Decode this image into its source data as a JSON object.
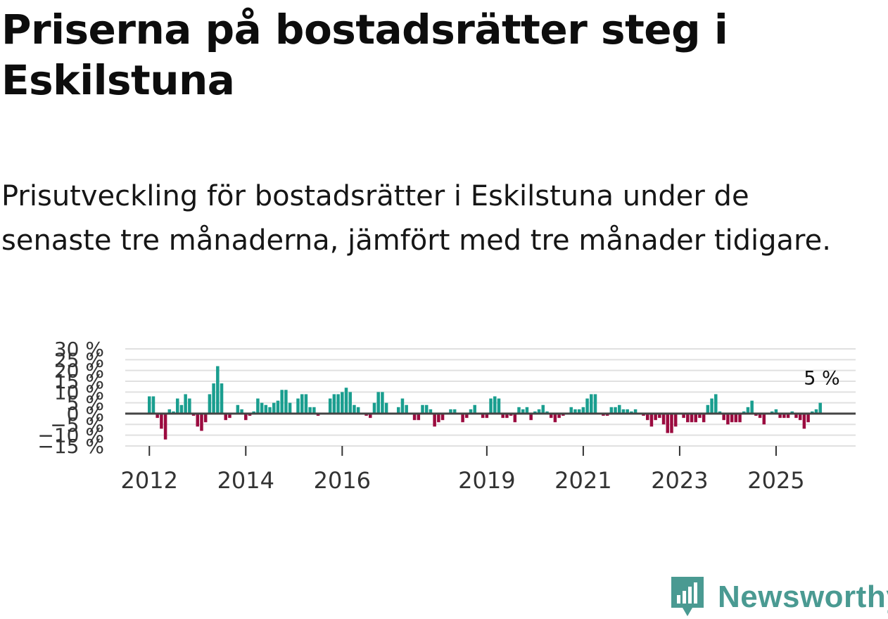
{
  "title": "Priserna på bostadsrätter steg i Eskilstuna",
  "subtitle": "Prisutveckling för bostadsrätter i Eskilstuna under de senaste tre månaderna, jämfört med tre månader tidigare.",
  "logo": {
    "text": "Newsworthy"
  },
  "colors": {
    "positive": "#1a9e8f",
    "negative": "#9b0b3f",
    "zero_line": "#444444",
    "grid": "#e0e0e0",
    "brand": "#4a9a92"
  },
  "chart_data": {
    "type": "bar",
    "title": "",
    "xlabel": "",
    "ylabel": "",
    "ylim": [
      -15,
      30
    ],
    "y_ticks": [
      -15,
      -10,
      -5,
      0,
      5,
      10,
      15,
      20,
      25,
      30
    ],
    "y_tick_labels": [
      "−15 %",
      "−10 %",
      "−5 %",
      "0 %",
      "5 %",
      "10 %",
      "15 %",
      "20 %",
      "25 %",
      "30 %"
    ],
    "x_ticks": [
      2012,
      2014,
      2016,
      2019,
      2021,
      2023,
      2025
    ],
    "x_tick_labels": [
      "2012",
      "2014",
      "2016",
      "2019",
      "2021",
      "2023",
      "2025"
    ],
    "series": [
      {
        "name": "Prisutveckling",
        "x_start": 2012.0,
        "x_step": 0.08333,
        "values": [
          8,
          8,
          -2,
          -7,
          -12,
          2,
          1,
          7,
          4,
          9,
          7,
          -1,
          -6,
          -8,
          -4,
          9,
          14,
          22,
          14,
          -3,
          -2,
          0,
          4,
          2,
          -3,
          -1,
          1,
          7,
          5,
          4,
          3,
          5,
          6,
          11,
          11,
          5,
          0,
          7,
          9,
          9,
          3,
          3,
          -1,
          0,
          0,
          7,
          9,
          9,
          10,
          12,
          10,
          4,
          3,
          0,
          -1,
          -2,
          5,
          10,
          10,
          5,
          0,
          0,
          3,
          7,
          4,
          0,
          -3,
          -3,
          4,
          4,
          2,
          -6,
          -4,
          -3,
          0,
          2,
          2,
          0,
          -4,
          -2,
          2,
          4,
          0,
          -2,
          -2,
          7,
          8,
          7,
          -2,
          -2,
          -1,
          -4,
          3,
          2,
          3,
          -3,
          1,
          2,
          4,
          1,
          -2,
          -4,
          -2,
          -1,
          0,
          3,
          2,
          2,
          3,
          7,
          9,
          9,
          0,
          -1,
          -1,
          3,
          3,
          4,
          2,
          2,
          1,
          2,
          0,
          -1,
          -3,
          -6,
          -3,
          -2,
          -5,
          -9,
          -9,
          -6,
          0,
          -2,
          -4,
          -4,
          -4,
          -2,
          -4,
          4,
          7,
          9,
          1,
          -3,
          -5,
          -4,
          -4,
          -4,
          1,
          3,
          6,
          -1,
          -2,
          -5,
          0,
          1,
          2,
          -2,
          -2,
          -2,
          1,
          -2,
          -3,
          -7,
          -4,
          1,
          2,
          5
        ]
      }
    ],
    "annotations": [
      {
        "label": "5 %",
        "value": 5
      }
    ]
  }
}
